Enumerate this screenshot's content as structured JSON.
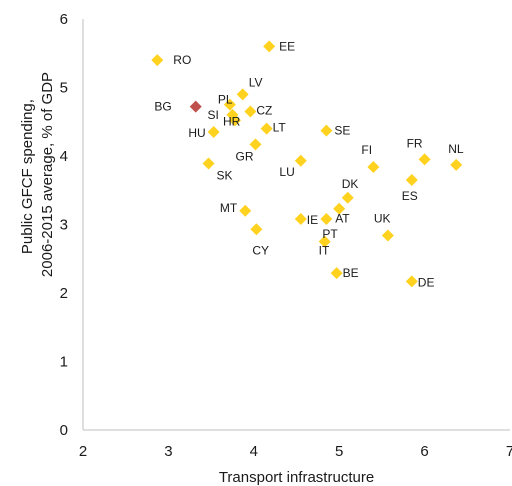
{
  "chart_data": {
    "type": "scatter",
    "xlabel": "Transport infrastructure",
    "ylabel_lines": [
      "Public GFCF spending,",
      "2006-2015 average, % of GDP"
    ],
    "xlim": [
      2,
      7
    ],
    "ylim": [
      0,
      6
    ],
    "xticks": [
      2,
      3,
      4,
      5,
      6,
      7
    ],
    "yticks": [
      0,
      1,
      2,
      3,
      4,
      5,
      6
    ],
    "grid": false,
    "colors": {
      "default": "#FFD21F",
      "highlight": "#C0504D",
      "axis": "#BFBFBF"
    },
    "points": [
      {
        "label": "RO",
        "x": 2.87,
        "y": 5.4
      },
      {
        "label": "EE",
        "x": 4.18,
        "y": 5.6
      },
      {
        "label": "BG",
        "x": 3.32,
        "y": 4.72,
        "highlight": true
      },
      {
        "label": "PL",
        "x": 3.72,
        "y": 4.75
      },
      {
        "label": "LV",
        "x": 3.87,
        "y": 4.9
      },
      {
        "label": "SI",
        "x": 3.75,
        "y": 4.6
      },
      {
        "label": "HR",
        "x": 3.78,
        "y": 4.52
      },
      {
        "label": "CZ",
        "x": 3.96,
        "y": 4.65
      },
      {
        "label": "HU",
        "x": 3.53,
        "y": 4.35
      },
      {
        "label": "LT",
        "x": 4.15,
        "y": 4.4
      },
      {
        "label": "SE",
        "x": 4.85,
        "y": 4.37
      },
      {
        "label": "GR",
        "x": 4.02,
        "y": 4.17
      },
      {
        "label": "FI",
        "x": 5.4,
        "y": 3.84
      },
      {
        "label": "FR",
        "x": 6.0,
        "y": 3.95
      },
      {
        "label": "NL",
        "x": 6.37,
        "y": 3.87
      },
      {
        "label": "SK",
        "x": 3.47,
        "y": 3.89
      },
      {
        "label": "LU",
        "x": 4.55,
        "y": 3.93
      },
      {
        "label": "DK",
        "x": 5.1,
        "y": 3.39
      },
      {
        "label": "ES",
        "x": 5.85,
        "y": 3.65
      },
      {
        "label": "MT",
        "x": 3.9,
        "y": 3.2
      },
      {
        "label": "AT",
        "x": 5.0,
        "y": 3.23
      },
      {
        "label": "IE",
        "x": 4.55,
        "y": 3.08
      },
      {
        "label": "PT",
        "x": 4.85,
        "y": 3.08
      },
      {
        "label": "CY",
        "x": 4.03,
        "y": 2.93
      },
      {
        "label": "UK",
        "x": 5.57,
        "y": 2.84
      },
      {
        "label": "IT",
        "x": 4.83,
        "y": 2.75
      },
      {
        "label": "BE",
        "x": 4.97,
        "y": 2.29
      },
      {
        "label": "DE",
        "x": 5.85,
        "y": 2.17
      }
    ]
  }
}
